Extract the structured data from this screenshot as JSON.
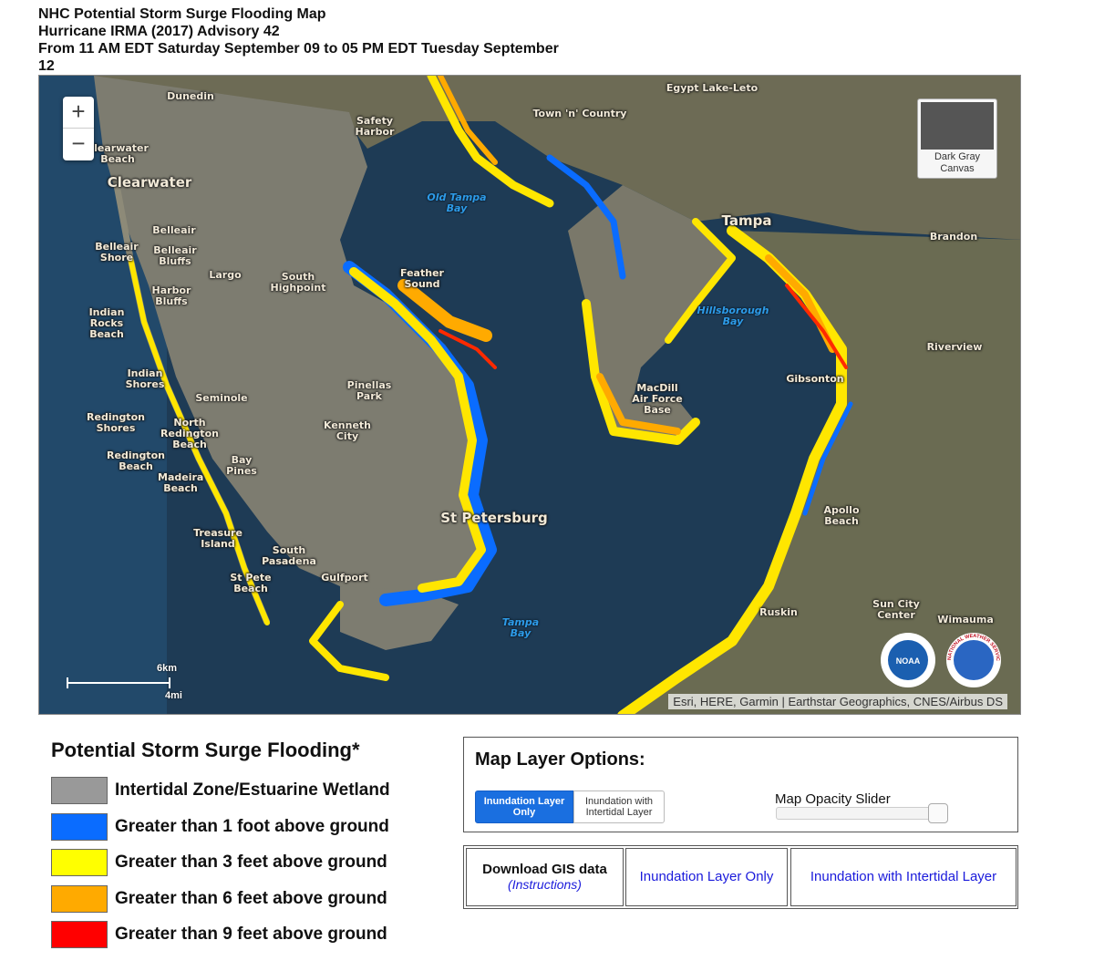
{
  "header": {
    "lines": [
      "NHC Potential Storm Surge Flooding Map",
      "Hurricane IRMA (2017) Advisory 42",
      "From 11 AM EDT Saturday September 09 to 05 PM EDT Tuesday September 12"
    ]
  },
  "map": {
    "zoom_in": "+",
    "zoom_out": "−",
    "basemap": "Dark Gray Canvas",
    "places": [
      "Dunedin",
      "Safety Harbor",
      "Town 'n' Country",
      "Egypt Lake-Leto",
      "Clearwater Beach",
      "Clearwater",
      "Tampa",
      "Brandon",
      "Belleair",
      "Belleair Shore",
      "Belleair Bluffs",
      "Largo",
      "South Highpoint",
      "Feather Sound",
      "Harbor Bluffs",
      "Indian Rocks Beach",
      "Riverview",
      "Indian Shores",
      "Seminole",
      "Pinellas Park",
      "MacDill Air Force Base",
      "Gibsonton",
      "Redington Shores",
      "North Redington Beach",
      "Kenneth City",
      "Redington Beach",
      "Madeira Beach",
      "Bay Pines",
      "St Petersburg",
      "Apollo Beach",
      "Treasure Island",
      "South Pasadena",
      "St Pete Beach",
      "Gulfport",
      "Ruskin",
      "Sun City Center",
      "Wimauma"
    ],
    "water": [
      "Old Tampa Bay",
      "Hillsborough Bay",
      "Tampa Bay"
    ],
    "scale": {
      "km": "6km",
      "mi": "4mi"
    },
    "attribution": "Esri, HERE, Garmin | Earthstar Geographics, CNES/Airbus DS",
    "logos": [
      "NOAA",
      "NATIONAL WEATHER SERVICE"
    ]
  },
  "legend": {
    "title": "Potential Storm Surge Flooding*",
    "items": [
      {
        "label": "Intertidal Zone/Estuarine Wetland",
        "color": "#999999"
      },
      {
        "label": "Greater than 1 foot above ground",
        "color": "#0a6cff"
      },
      {
        "label": "Greater than 3 feet above ground",
        "color": "#ffff00"
      },
      {
        "label": "Greater than 6 feet above ground",
        "color": "#ffaa00"
      },
      {
        "label": "Greater than 9 feet above ground",
        "color": "#ff0000"
      }
    ]
  },
  "layer_options": {
    "title": "Map Layer Options:",
    "buttons": [
      "Inundation Layer Only",
      "Inundation with Intertidal Layer"
    ],
    "slider_label": "Map Opacity Slider"
  },
  "downloads": {
    "title": "Download GIS data",
    "instructions": "(Instructions)",
    "links": [
      "Inundation Layer Only",
      "Inundation with Intertidal Layer"
    ]
  }
}
